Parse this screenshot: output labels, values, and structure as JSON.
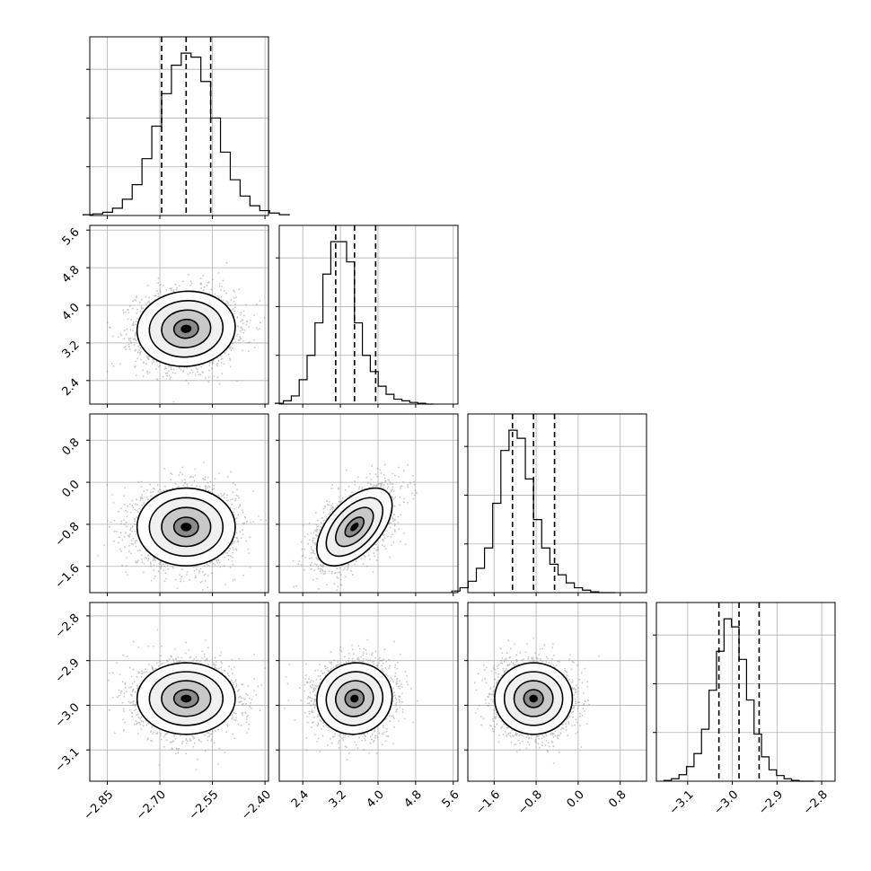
{
  "chart_data": {
    "type": "corner",
    "parameters": [
      {
        "range": [
          -2.9,
          -2.39
        ],
        "ticks": [
          -2.85,
          -2.7,
          -2.55,
          -2.4
        ],
        "tick_labels": [
          "−2.85",
          "−2.70",
          "−2.55",
          "−2.40"
        ],
        "mean": -2.625,
        "sigma": 0.07,
        "quantiles": [
          -2.695,
          -2.625,
          -2.555
        ],
        "hist_counts": [
          1,
          2,
          4,
          9,
          20,
          38,
          70,
          110,
          150,
          185,
          200,
          195,
          165,
          120,
          78,
          44,
          24,
          12,
          6,
          3,
          1
        ]
      },
      {
        "range": [
          1.9,
          5.7
        ],
        "ticks": [
          2.4,
          3.2,
          4.0,
          4.8,
          5.6
        ],
        "tick_labels": [
          "2.4",
          "3.2",
          "4.0",
          "4.8",
          "5.6"
        ],
        "mean": 3.5,
        "sigma": 0.4,
        "quantiles": [
          3.1,
          3.5,
          3.95
        ],
        "hist_counts": [
          1,
          4,
          10,
          30,
          60,
          100,
          160,
          200,
          200,
          175,
          100,
          60,
          40,
          22,
          12,
          6,
          4,
          2,
          1,
          0
        ]
      },
      {
        "range": [
          -2.1,
          1.3
        ],
        "ticks": [
          -1.6,
          -0.8,
          0.0,
          0.8
        ],
        "tick_labels": [
          "−1.6",
          "−0.8",
          "0.0",
          "0.8"
        ],
        "mean": -0.85,
        "sigma": 0.37,
        "quantiles": [
          -1.25,
          -0.85,
          -0.45
        ],
        "hist_counts": [
          2,
          6,
          14,
          30,
          55,
          110,
          175,
          200,
          190,
          140,
          90,
          55,
          35,
          22,
          12,
          6,
          3,
          1,
          0,
          0
        ]
      },
      {
        "range": [
          -3.17,
          -2.77
        ],
        "ticks": [
          -3.1,
          -3.0,
          -2.9,
          -2.8
        ],
        "tick_labels": [
          "−3.1",
          "−3.0",
          "−2.9",
          "−2.8"
        ],
        "mean": -2.985,
        "sigma": 0.04,
        "quantiles": [
          -3.03,
          -2.985,
          -2.94
        ],
        "hist_counts": [
          1,
          3,
          8,
          18,
          34,
          64,
          112,
          160,
          200,
          190,
          150,
          100,
          58,
          30,
          14,
          7,
          3,
          1,
          0,
          0
        ]
      }
    ],
    "correlations": {
      "1-0": 0.05,
      "2-0": 0.0,
      "2-1": 0.55,
      "3-0": 0.0,
      "3-1": 0.05,
      "3-2": 0.0
    },
    "grid": true,
    "scatter_color": "#7f7f7f",
    "contour_levels": [
      0.118,
      0.393,
      0.675,
      0.865
    ]
  }
}
